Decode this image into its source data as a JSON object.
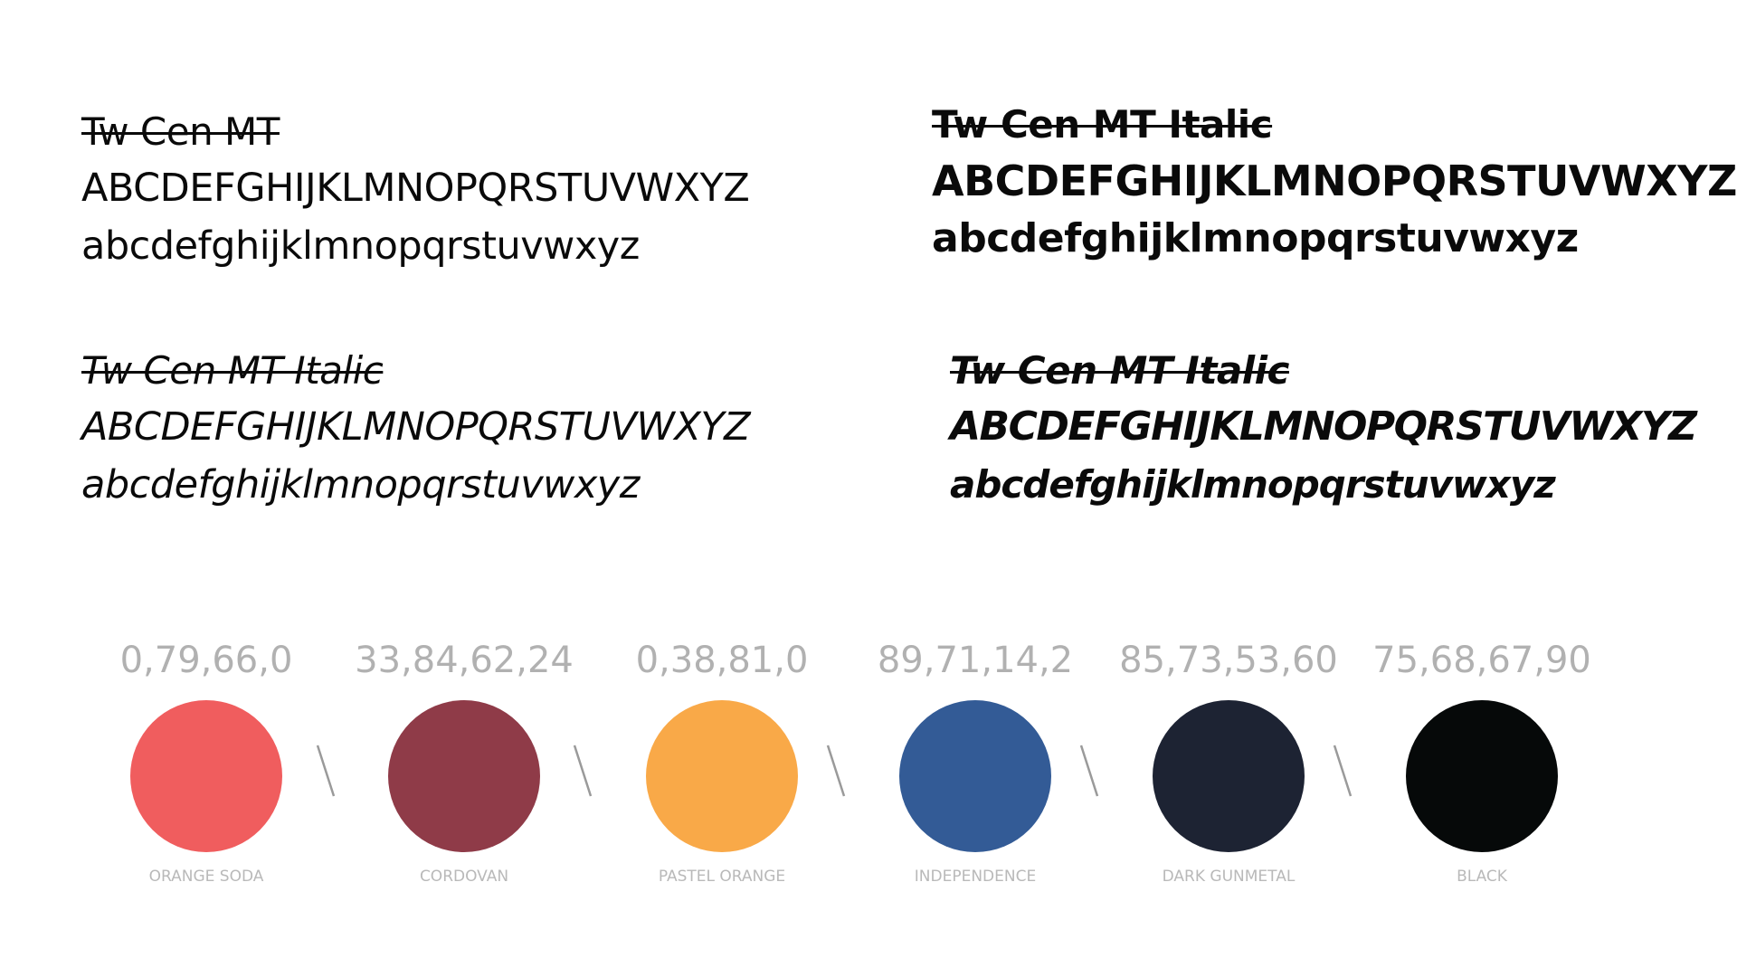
{
  "typefaces": [
    {
      "font_name": "Tw Cen MT",
      "uppercase": "ABCDEFGHIJKLMNOPQRSTUVWXYZ",
      "lowercase": "abcdefghijklmnopqrstuvwxyz"
    },
    {
      "font_name": "Tw Cen MT Italic",
      "uppercase": "ABCDEFGHIJKLMNOPQRSTUVWXYZ",
      "lowercase": "abcdefghijklmnopqrstuvwxyz"
    },
    {
      "font_name": "Tw Cen MT Italic",
      "uppercase": "ABCDEFGHIJKLMNOPQRSTUVWXYZ",
      "lowercase": "abcdefghijklmnopqrstuvwxyz"
    },
    {
      "font_name": "Tw Cen MT Italic",
      "uppercase": "ABCDEFGHIJKLMNOPQRSTUVWXYZ",
      "lowercase": "abcdefghijklmnopqrstuvwxyz"
    }
  ],
  "palette": [
    {
      "cmyk": "0,79,66,0",
      "name": "ORANGE SODA",
      "color": "#f05d5e"
    },
    {
      "cmyk": "33,84,62,24",
      "name": "CORDOVAN",
      "color": "#8f3b48"
    },
    {
      "cmyk": "0,38,81,0",
      "name": "PASTEL ORANGE",
      "color": "#f9a948"
    },
    {
      "cmyk": "89,71,14,2",
      "name": "INDEPENDENCE",
      "color": "#335b96"
    },
    {
      "cmyk": "85,73,53,60",
      "name": "DARK GUNMETAL",
      "color": "#1d2333"
    },
    {
      "cmyk": "75,68,67,90",
      "name": "BLACK",
      "color": "#060909"
    }
  ],
  "separator_color": "#9a9a9a"
}
